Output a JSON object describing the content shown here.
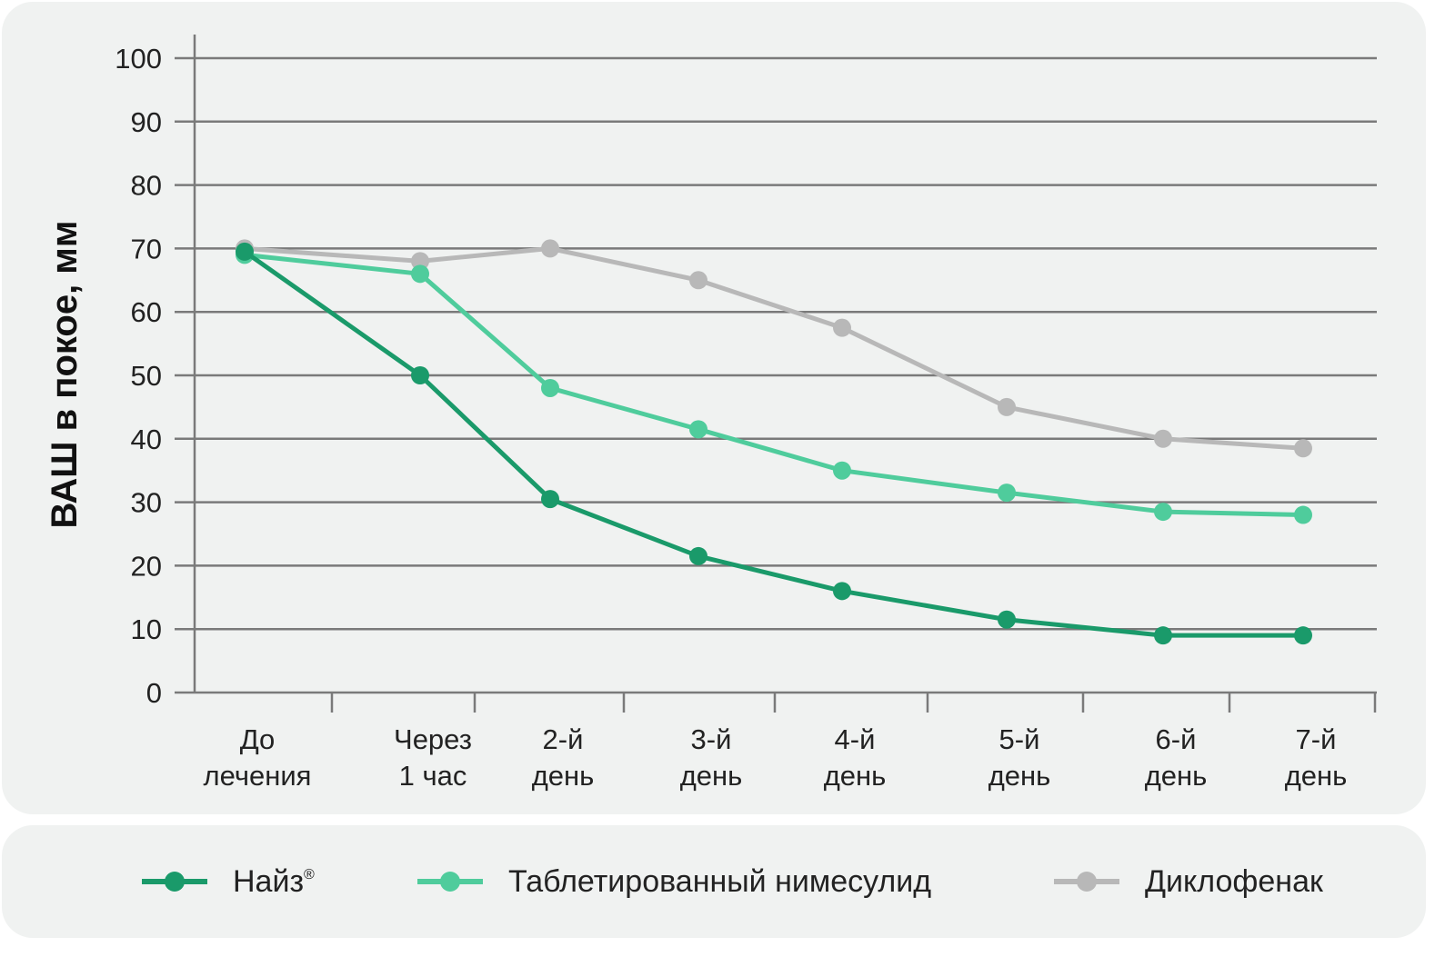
{
  "chart_data": {
    "type": "line",
    "ylabel": "ВАШ в покое, мм",
    "xlabel": "",
    "ylim": [
      0,
      100
    ],
    "yticks": [
      "0",
      "10",
      "20",
      "30",
      "40",
      "50",
      "60",
      "70",
      "80",
      "90",
      "100"
    ],
    "categories": [
      [
        "До",
        "лечения"
      ],
      [
        "Через",
        "1 час"
      ],
      [
        "2-й",
        "день"
      ],
      [
        "3-й",
        "день"
      ],
      [
        "4-й",
        "день"
      ],
      [
        "5-й",
        "день"
      ],
      [
        "6-й",
        "день"
      ],
      [
        "7-й",
        "день"
      ]
    ],
    "grid": true,
    "legend_position": "bottom",
    "series": [
      {
        "name": "Диклофенак",
        "color": "#b8b8b8",
        "values": [
          70,
          68,
          70,
          65,
          57.5,
          45,
          40,
          38.5
        ]
      },
      {
        "name": "Таблетированный нимесулид",
        "color": "#4fcc9c",
        "values": [
          69,
          66,
          48,
          41.5,
          35,
          31.5,
          28.5,
          28
        ]
      },
      {
        "name": "Найз",
        "name_suffix": "®",
        "color": "#1a9a6a",
        "values": [
          69.5,
          50,
          30.5,
          21.5,
          16,
          11.5,
          9,
          9
        ]
      }
    ]
  },
  "legend": {
    "items": [
      {
        "label": "Найз",
        "suffix": "®",
        "color": "#1a9a6a"
      },
      {
        "label": "Таблетированный нимесулид",
        "suffix": "",
        "color": "#4fcc9c"
      },
      {
        "label": "Диклофенак",
        "suffix": "",
        "color": "#b8b8b8"
      }
    ]
  }
}
